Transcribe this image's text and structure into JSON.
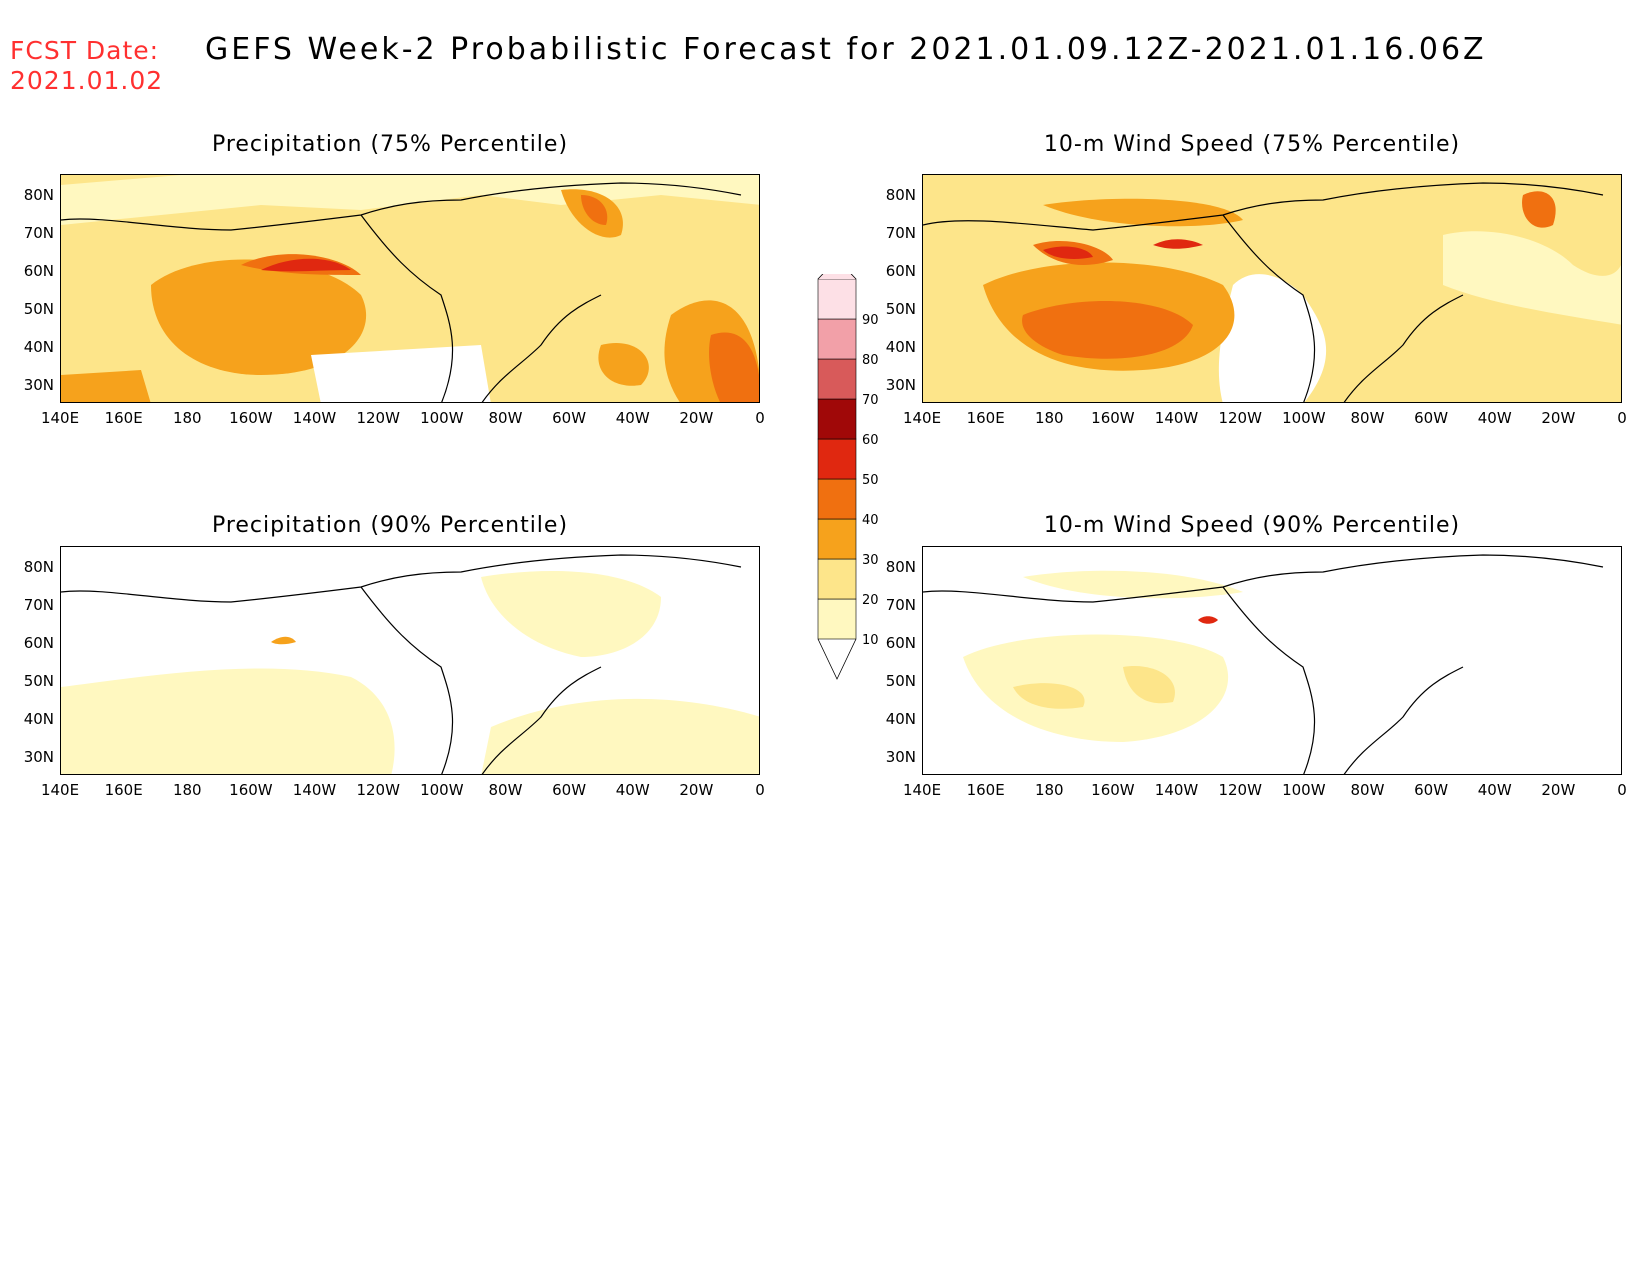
{
  "header": {
    "fcst_label": "FCST Date:",
    "fcst_date": "2021.01.02",
    "title": "GEFS Week-2 Probabilistic Forecast for 2021.01.09.12Z-2021.01.16.06Z"
  },
  "lat_ticks": [
    "80N",
    "70N",
    "60N",
    "50N",
    "40N",
    "30N"
  ],
  "lon_ticks": [
    "140E",
    "160E",
    "180",
    "160W",
    "140W",
    "120W",
    "100W",
    "80W",
    "60W",
    "40W",
    "20W",
    "0"
  ],
  "panels": [
    {
      "id": "precip75",
      "title": "Precipitation (75% Percentile)"
    },
    {
      "id": "wind75",
      "title": "10-m Wind Speed (75% Percentile)"
    },
    {
      "id": "precip90",
      "title": "Precipitation (90% Percentile)"
    },
    {
      "id": "wind90",
      "title": "10-m Wind Speed (90% Percentile)"
    }
  ],
  "colorbar": {
    "levels": [
      {
        "label": "10",
        "color": "#fff8c0"
      },
      {
        "label": "20",
        "color": "#fde58a"
      },
      {
        "label": "30",
        "color": "#f6a21c"
      },
      {
        "label": "40",
        "color": "#f07010"
      },
      {
        "label": "50",
        "color": "#e02810"
      },
      {
        "label": "60",
        "color": "#a00808"
      },
      {
        "label": "70",
        "color": "#d85a5a"
      },
      {
        "label": "80",
        "color": "#f2a0a8"
      },
      {
        "label": "90",
        "color": "#fde0e6"
      }
    ]
  }
}
